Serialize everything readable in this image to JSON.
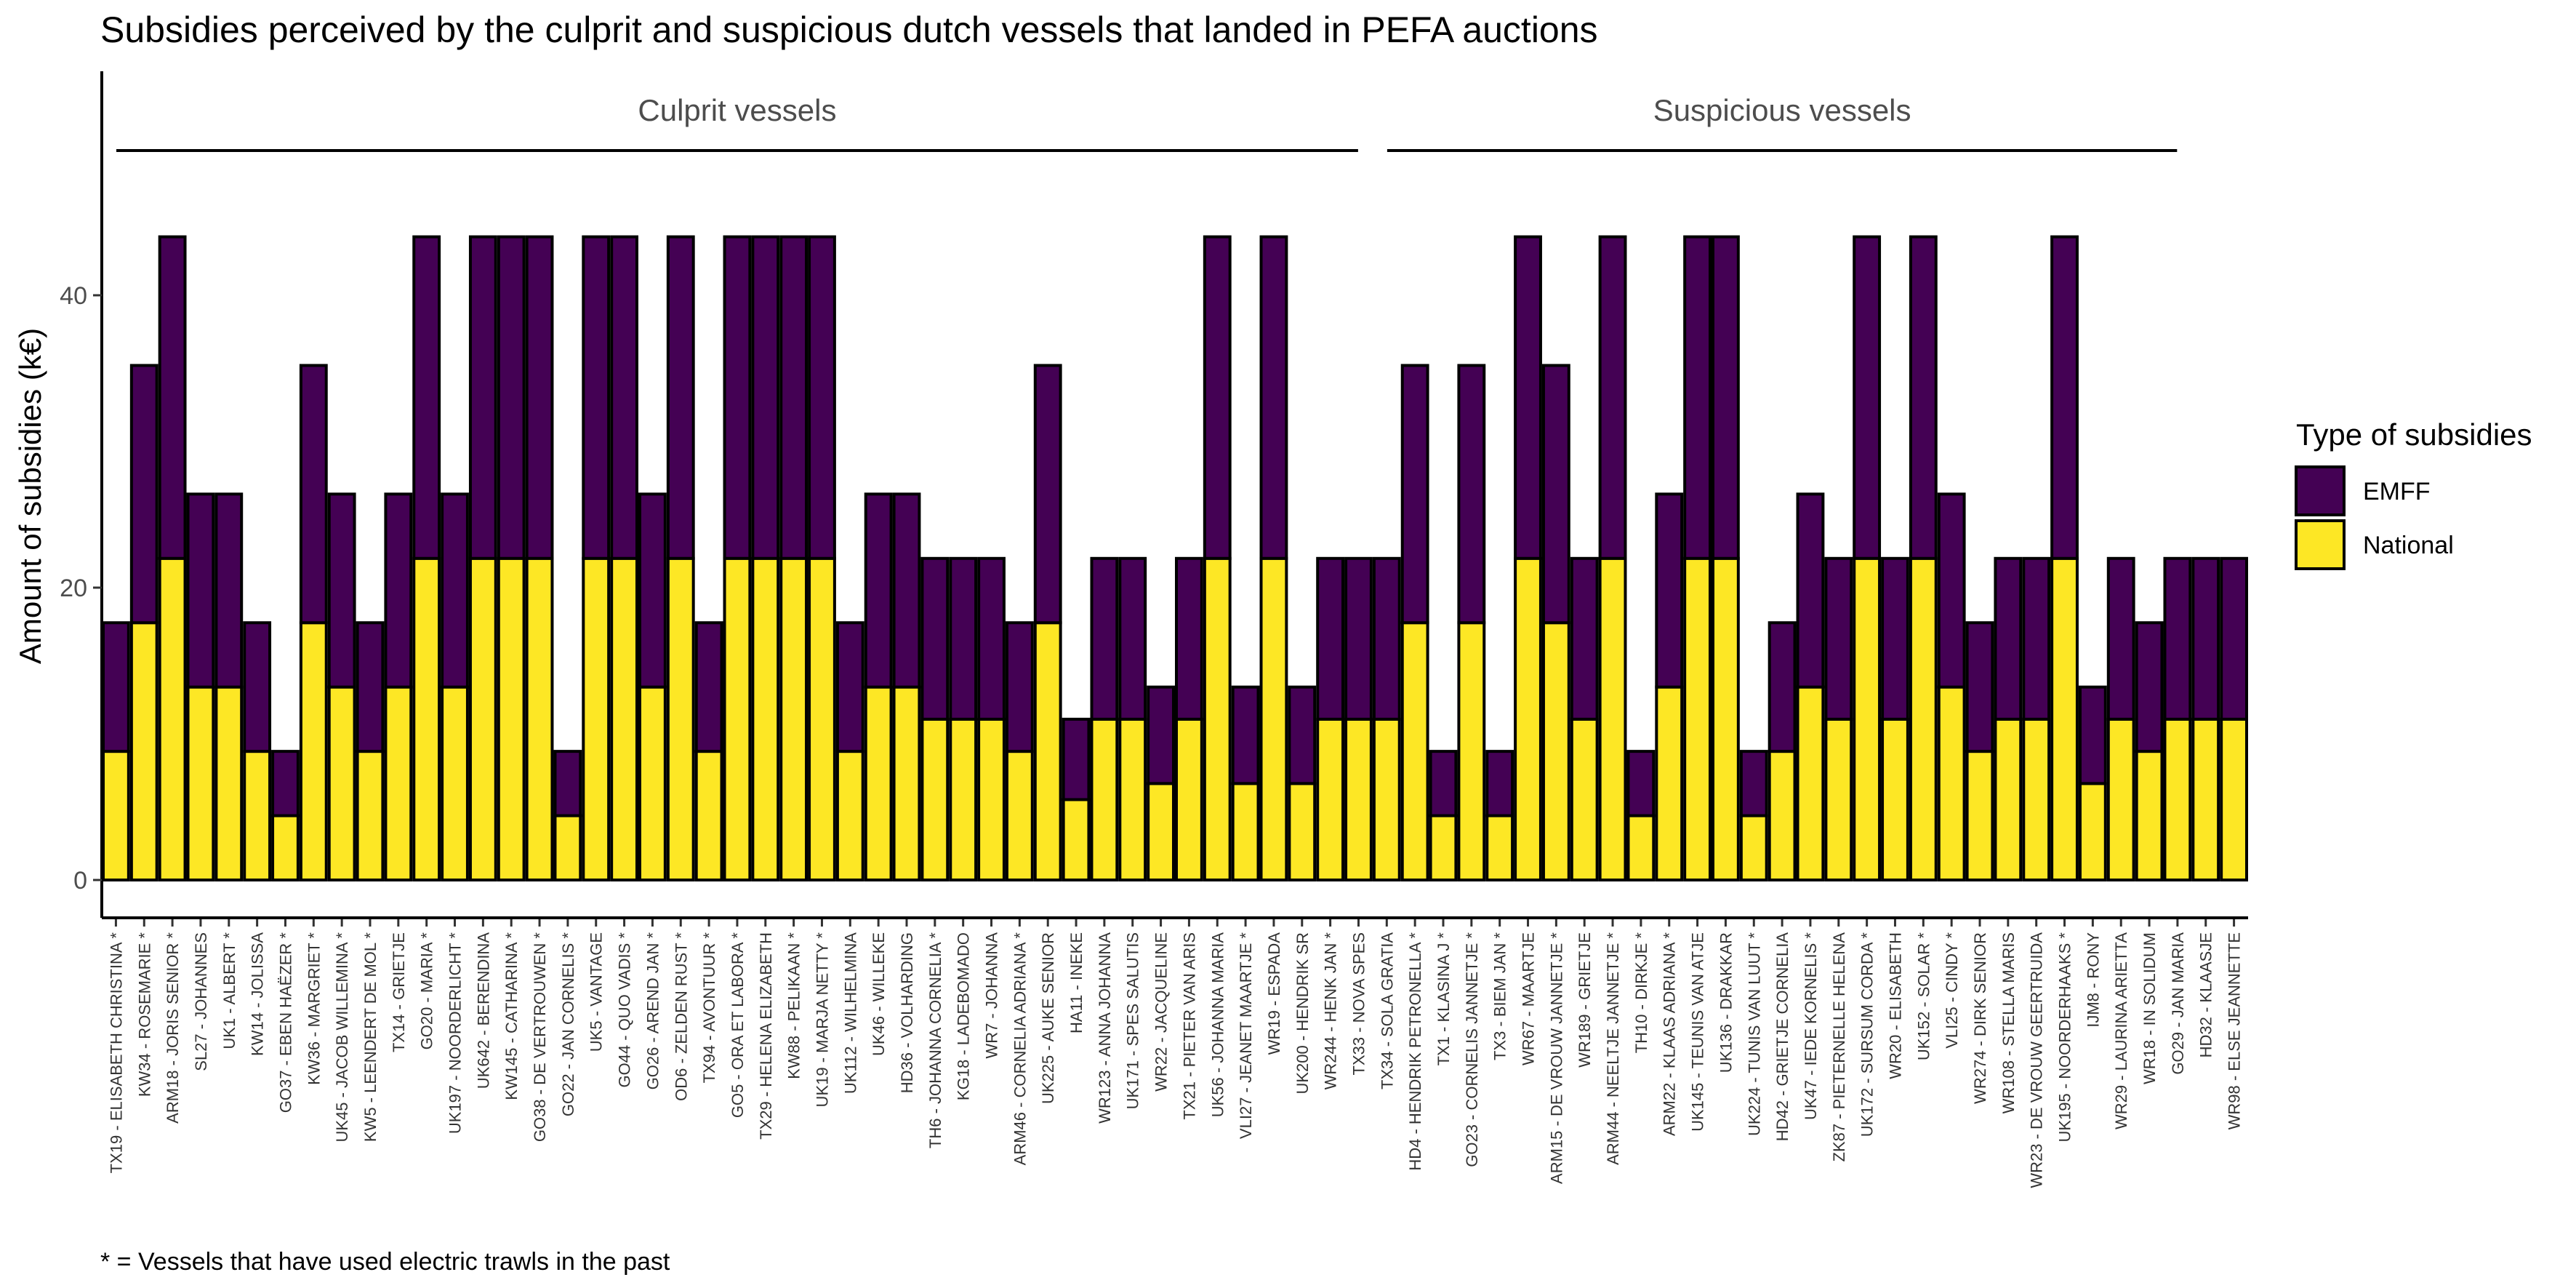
{
  "chart_data": {
    "type": "bar",
    "stacked": true,
    "title": "Subsidies perceived by the culprit and suspicious dutch vessels that landed in PEFA auctions",
    "ylabel": "Amount of subsidies (k€)",
    "xlabel": "",
    "ylim": [
      0,
      55
    ],
    "yticks": [
      0,
      20,
      40
    ],
    "grid": false,
    "legend": {
      "title": "Type of subsidies",
      "position": "right",
      "items": [
        {
          "label": "EMFF",
          "color": "#440154"
        },
        {
          "label": "National",
          "color": "#FDE725"
        }
      ]
    },
    "caption": "* = Vessels that have used electric trawls in the past",
    "groups": [
      {
        "label": "Culprit vessels",
        "start": 0,
        "end": 44
      },
      {
        "label": "Suspicious vessels",
        "start": 45,
        "end": 73
      }
    ],
    "categories": [
      "TX19 - ELISABETH CHRISTINA *",
      "KW34 - ROSEMARIE *",
      "ARM18 - JORIS SENIOR *",
      "SL27 - JOHANNES",
      "UK1 - ALBERT *",
      "KW14 - JOLISSA",
      "GO37 - EBEN HAËZER *",
      "KW36 - MARGRIET *",
      "UK45 - JACOB WILLEMINA *",
      "KW5 - LEENDERT DE MOL *",
      "TX14 - GRIETJE",
      "GO20 - MARIA *",
      "UK197 - NOORDERLICHT *",
      "UK642 - BERENDINA",
      "KW145 - CATHARINA *",
      "GO38 - DE VERTROUWEN *",
      "GO22 - JAN CORNELIS *",
      "UK5 - VANTAGE",
      "GO44 - QUO VADIS *",
      "GO26 - AREND JAN *",
      "OD6 - ZELDEN RUST *",
      "TX94 - AVONTUUR *",
      "GO5 - ORA ET LABORA *",
      "TX29 - HELENA ELIZABETH",
      "KW88 - PELIKAAN *",
      "UK19 - MARJA NETTY *",
      "UK112 - WILHELMINA",
      "UK46 - WILLEKE",
      "HD36 - VOLHARDING",
      "TH6 - JOHANNA CORNELIA *",
      "KG18 - LADEBOMADO",
      "WR7 - JOHANNA",
      "ARM46 - CORNELIA ADRIANA *",
      "UK225 - AUKE SENIOR",
      "HA11 - INEKE",
      "WR123 - ANNA JOHANNA",
      "UK171 - SPES SALUTIS",
      "WR22 - JACQUELINE",
      "TX21 - PIETER VAN ARIS",
      "UK56 - JOHANNA MARIA",
      "VLI27 - JEANET MAARTJE *",
      "WR19 - ESPADA",
      "UK200 - HENDRIK SR",
      "WR244 - HENK JAN *",
      "TX33 - NOVA SPES",
      "TX34 - SOLA GRATIA",
      "HD4 - HENDRIK PETRONELLA *",
      "TX1 - KLASINA J *",
      "GO23 - CORNELIS JANNETJE *",
      "TX3 - BIEM JAN *",
      "WR67 - MAARTJE",
      "ARM15 - DE VROUW JANNETJE *",
      "WR189 - GRIETJE",
      "ARM44 - NEELTJE JANNETJE *",
      "TH10 - DIRKJE *",
      "ARM22 - KLAAS ADRIANA *",
      "UK145 - TEUNIS VAN ATJE",
      "UK136 - DRAKKAR",
      "UK224 - TUNIS VAN LUUT *",
      "HD42 - GRIETJE CORNELIA",
      "UK47 - IEDE KORNELIS *",
      "ZK87 - PIETERNELLE HELENA",
      "UK172 - SURSUM CORDA *",
      "WR20 - ELISABETH",
      "UK152 - SOLAR *",
      "VLI25 - CINDY *",
      "WR274 - DIRK SENIOR",
      "WR108 - STELLA MARIS",
      "WR23 - DE VROUW GEERTRUIDA",
      "UK195 - NOORDERHAAKS *",
      "IJM8 - RONY",
      "WR29 - LAURINA ARIETTA",
      "WR18 - IN SOLIDUM",
      "GO29 - JAN MARIA",
      "HD32 - KLAASJE",
      "WR98 - ELSE JEANNETTE"
    ],
    "series": [
      {
        "name": "National",
        "values": [
          8.8,
          17.6,
          22,
          13.2,
          13.2,
          8.8,
          4.4,
          17.6,
          13.2,
          8.8,
          13.2,
          22,
          13.2,
          22,
          22,
          22,
          4.4,
          22,
          22,
          13.2,
          22,
          8.8,
          22,
          22,
          22,
          22,
          8.8,
          13.2,
          13.2,
          11,
          11,
          11,
          8.8,
          17.6,
          5.5,
          11,
          11,
          6.6,
          11,
          22,
          6.6,
          22,
          6.6,
          11,
          11,
          11,
          17.6,
          4.4,
          17.6,
          4.4,
          22,
          17.6,
          11,
          22,
          4.4,
          13.2,
          22,
          22,
          4.4,
          8.8,
          13.2,
          11,
          22,
          11,
          22,
          13.2,
          8.8,
          11,
          11,
          22,
          6.6,
          11,
          8.8,
          11,
          11,
          11
        ]
      },
      {
        "name": "EMFF",
        "values": [
          8.8,
          17.6,
          22,
          13.2,
          13.2,
          8.8,
          4.4,
          17.6,
          13.2,
          8.8,
          13.2,
          22,
          13.2,
          22,
          22,
          22,
          4.4,
          22,
          22,
          13.2,
          22,
          8.8,
          22,
          22,
          22,
          22,
          8.8,
          13.2,
          13.2,
          11,
          11,
          11,
          8.8,
          17.6,
          5.5,
          11,
          11,
          6.6,
          11,
          22,
          6.6,
          22,
          6.6,
          11,
          11,
          11,
          17.6,
          4.4,
          17.6,
          4.4,
          22,
          17.6,
          11,
          22,
          4.4,
          13.2,
          22,
          22,
          4.4,
          8.8,
          13.2,
          11,
          22,
          11,
          22,
          13.2,
          8.8,
          11,
          11,
          22,
          6.6,
          11,
          8.8,
          11,
          11,
          11
        ]
      }
    ]
  }
}
